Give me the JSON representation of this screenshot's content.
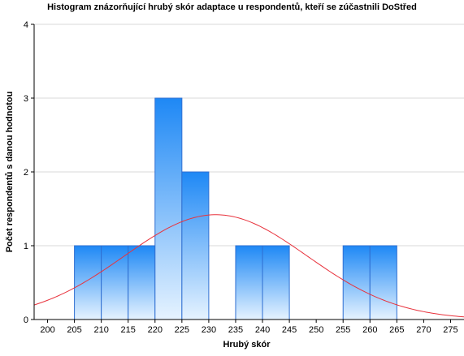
{
  "chart_data": {
    "type": "bar",
    "title": "Histogram znázorňující hrubý skór adaptace u respondentů, kteří se zúčastnili DoStřed",
    "xlabel": "Hrubý skór",
    "ylabel": "Počet respondentů s danou hodnotou",
    "xlim": [
      197.5,
      277.5
    ],
    "ylim": [
      0,
      4
    ],
    "x_ticks": [
      "200",
      "205",
      "210",
      "215",
      "220",
      "225",
      "230",
      "235",
      "240",
      "245",
      "250",
      "255",
      "260",
      "265",
      "270",
      "275"
    ],
    "y_ticks": [
      "0",
      "1",
      "2",
      "3",
      "4"
    ],
    "grid": true,
    "bins": [
      {
        "from": 205,
        "to": 210,
        "value": 1
      },
      {
        "from": 210,
        "to": 215,
        "value": 1
      },
      {
        "from": 215,
        "to": 220,
        "value": 1
      },
      {
        "from": 220,
        "to": 225,
        "value": 3
      },
      {
        "from": 225,
        "to": 230,
        "value": 2
      },
      {
        "from": 230,
        "to": 235,
        "value": 0
      },
      {
        "from": 235,
        "to": 240,
        "value": 1
      },
      {
        "from": 240,
        "to": 245,
        "value": 1
      },
      {
        "from": 245,
        "to": 250,
        "value": 0
      },
      {
        "from": 250,
        "to": 255,
        "value": 0
      },
      {
        "from": 255,
        "to": 260,
        "value": 1
      },
      {
        "from": 260,
        "to": 265,
        "value": 1
      },
      {
        "from": 265,
        "to": 270,
        "value": 0
      }
    ],
    "normal_curve": {
      "mean": 231.3,
      "sd": 17.0,
      "peak": 1.42
    },
    "colors": {
      "bar_top": "#1e88f5",
      "bar_bottom": "#e6f3ff",
      "bar_edge": "#2f6fd1",
      "curve": "#e8323c",
      "grid": "#d9d9d9"
    }
  }
}
